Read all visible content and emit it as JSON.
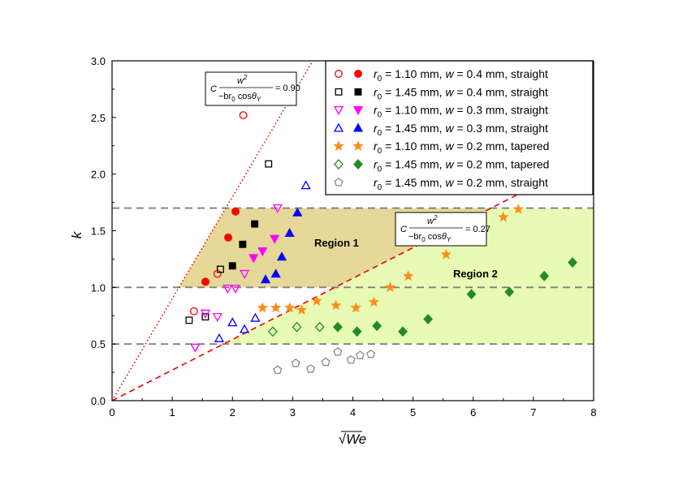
{
  "chart_data": {
    "type": "scatter",
    "xlabel": "√We",
    "ylabel": "k",
    "xlim": [
      0,
      8
    ],
    "ylim": [
      0,
      3.0
    ],
    "xticks": [
      "0",
      "1",
      "2",
      "3",
      "4",
      "5",
      "6",
      "7",
      "8"
    ],
    "yticks": [
      "0.0",
      "0.5",
      "1.0",
      "1.5",
      "2.0",
      "2.5",
      "3.0"
    ],
    "legend_position": "top-right",
    "series": [
      {
        "name": "r0 = 1.10 mm, w = 0.4 mm, straight",
        "legend": {
          "r_value": "1.10 mm",
          "w_value": "0.4 mm",
          "shape": "straight"
        },
        "marker": "circle",
        "color": "#ff0000",
        "open": [
          [
            1.36,
            0.79
          ],
          [
            1.75,
            1.12
          ],
          [
            2.18,
            2.52
          ]
        ],
        "filled": [
          [
            1.55,
            1.05
          ],
          [
            1.93,
            1.44
          ],
          [
            2.05,
            1.67
          ]
        ]
      },
      {
        "name": "r0 = 1.45 mm, w = 0.4 mm, straight",
        "legend": {
          "r_value": "1.45 mm",
          "w_value": "0.4 mm",
          "shape": "straight"
        },
        "marker": "square",
        "color": "#000000",
        "open": [
          [
            1.28,
            0.71
          ],
          [
            1.55,
            0.74
          ],
          [
            1.8,
            1.16
          ],
          [
            2.6,
            2.09
          ]
        ],
        "filled": [
          [
            2.0,
            1.19
          ],
          [
            2.17,
            1.38
          ],
          [
            2.37,
            1.56
          ]
        ]
      },
      {
        "name": "r0 = 1.10 mm, w = 0.3 mm, straight",
        "legend": {
          "r_value": "1.10 mm",
          "w_value": "0.3 mm",
          "shape": "straight"
        },
        "marker": "triangle-down",
        "color": "#ff00ff",
        "open": [
          [
            1.38,
            0.47
          ],
          [
            1.55,
            0.77
          ],
          [
            1.75,
            0.74
          ],
          [
            1.92,
            0.99
          ],
          [
            2.05,
            0.99
          ],
          [
            2.2,
            1.12
          ],
          [
            2.75,
            1.7
          ]
        ],
        "filled": [
          [
            2.35,
            1.26
          ],
          [
            2.5,
            1.32
          ],
          [
            2.7,
            1.43
          ]
        ]
      },
      {
        "name": "r0 = 1.45 mm, w = 0.3 mm, straight",
        "legend": {
          "r_value": "1.45 mm",
          "w_value": "0.3 mm",
          "shape": "straight"
        },
        "marker": "triangle-up",
        "color": "#0000ff",
        "open": [
          [
            1.78,
            0.55
          ],
          [
            2.0,
            0.69
          ],
          [
            2.2,
            0.63
          ],
          [
            2.38,
            0.73
          ],
          [
            3.22,
            1.9
          ]
        ],
        "filled": [
          [
            2.55,
            1.07
          ],
          [
            2.72,
            1.12
          ],
          [
            2.82,
            1.27
          ],
          [
            2.95,
            1.48
          ],
          [
            3.08,
            1.66
          ]
        ]
      },
      {
        "name": "r0 = 1.10 mm, w = 0.2 mm, tapered",
        "legend": {
          "r_value": "1.10 mm",
          "w_value": "0.2 mm",
          "shape": "tapered"
        },
        "marker": "star",
        "color": "#ff8c1a",
        "open": [],
        "filled": [
          [
            2.5,
            0.82
          ],
          [
            2.72,
            0.82
          ],
          [
            2.95,
            0.82
          ],
          [
            3.15,
            0.8
          ],
          [
            3.4,
            0.88
          ],
          [
            3.72,
            0.84
          ],
          [
            4.05,
            0.82
          ],
          [
            4.35,
            0.87
          ],
          [
            4.62,
            1.0
          ],
          [
            4.92,
            1.1
          ],
          [
            5.55,
            1.29
          ],
          [
            6.5,
            1.62
          ],
          [
            6.75,
            1.69
          ]
        ]
      },
      {
        "name": "r0 = 1.45 mm, w = 0.2 mm, tapered",
        "legend": {
          "r_value": "1.45 mm",
          "w_value": "0.2 mm",
          "shape": "tapered"
        },
        "marker": "diamond",
        "color": "#228b22",
        "open": [
          [
            2.67,
            0.61
          ],
          [
            3.07,
            0.65
          ],
          [
            3.45,
            0.65
          ]
        ],
        "filled": [
          [
            3.75,
            0.65
          ],
          [
            4.07,
            0.61
          ],
          [
            4.4,
            0.66
          ],
          [
            4.83,
            0.61
          ],
          [
            5.25,
            0.72
          ],
          [
            5.97,
            0.94
          ],
          [
            6.6,
            0.96
          ],
          [
            7.18,
            1.1
          ],
          [
            7.65,
            1.22
          ]
        ]
      },
      {
        "name": "r0 = 1.45 mm, w = 0.2 mm, straight",
        "legend": {
          "r_value": "1.45 mm",
          "w_value": "0.2 mm",
          "shape": "straight"
        },
        "marker": "pentagon",
        "color": "#888888",
        "open": [
          [
            2.75,
            0.27
          ],
          [
            3.05,
            0.33
          ],
          [
            3.3,
            0.28
          ],
          [
            3.55,
            0.34
          ],
          [
            3.75,
            0.43
          ],
          [
            3.97,
            0.36
          ],
          [
            4.12,
            0.4
          ],
          [
            4.3,
            0.41
          ]
        ],
        "filled": []
      }
    ],
    "reference_lines": [
      {
        "name": "dotted-slope-0.90-line",
        "style": "dotted",
        "slope": 0.9,
        "label": "= 0.90"
      },
      {
        "name": "dashed-slope-0.27-line",
        "style": "dashed",
        "slope": 0.27,
        "label": "= 0.27"
      }
    ],
    "threshold_lines": [
      0.5,
      1.0,
      1.7
    ],
    "regions": [
      {
        "label": "Region 1",
        "color": "#e6d898"
      },
      {
        "label": "Region 2",
        "color": "#e8fbb4"
      }
    ],
    "annotation_formula": "C w² / (−b r₀ cos θY)",
    "colors": {
      "dotted_line": "#ee0000",
      "dashed_line": "#ee0000",
      "threshold": "#808080"
    }
  }
}
